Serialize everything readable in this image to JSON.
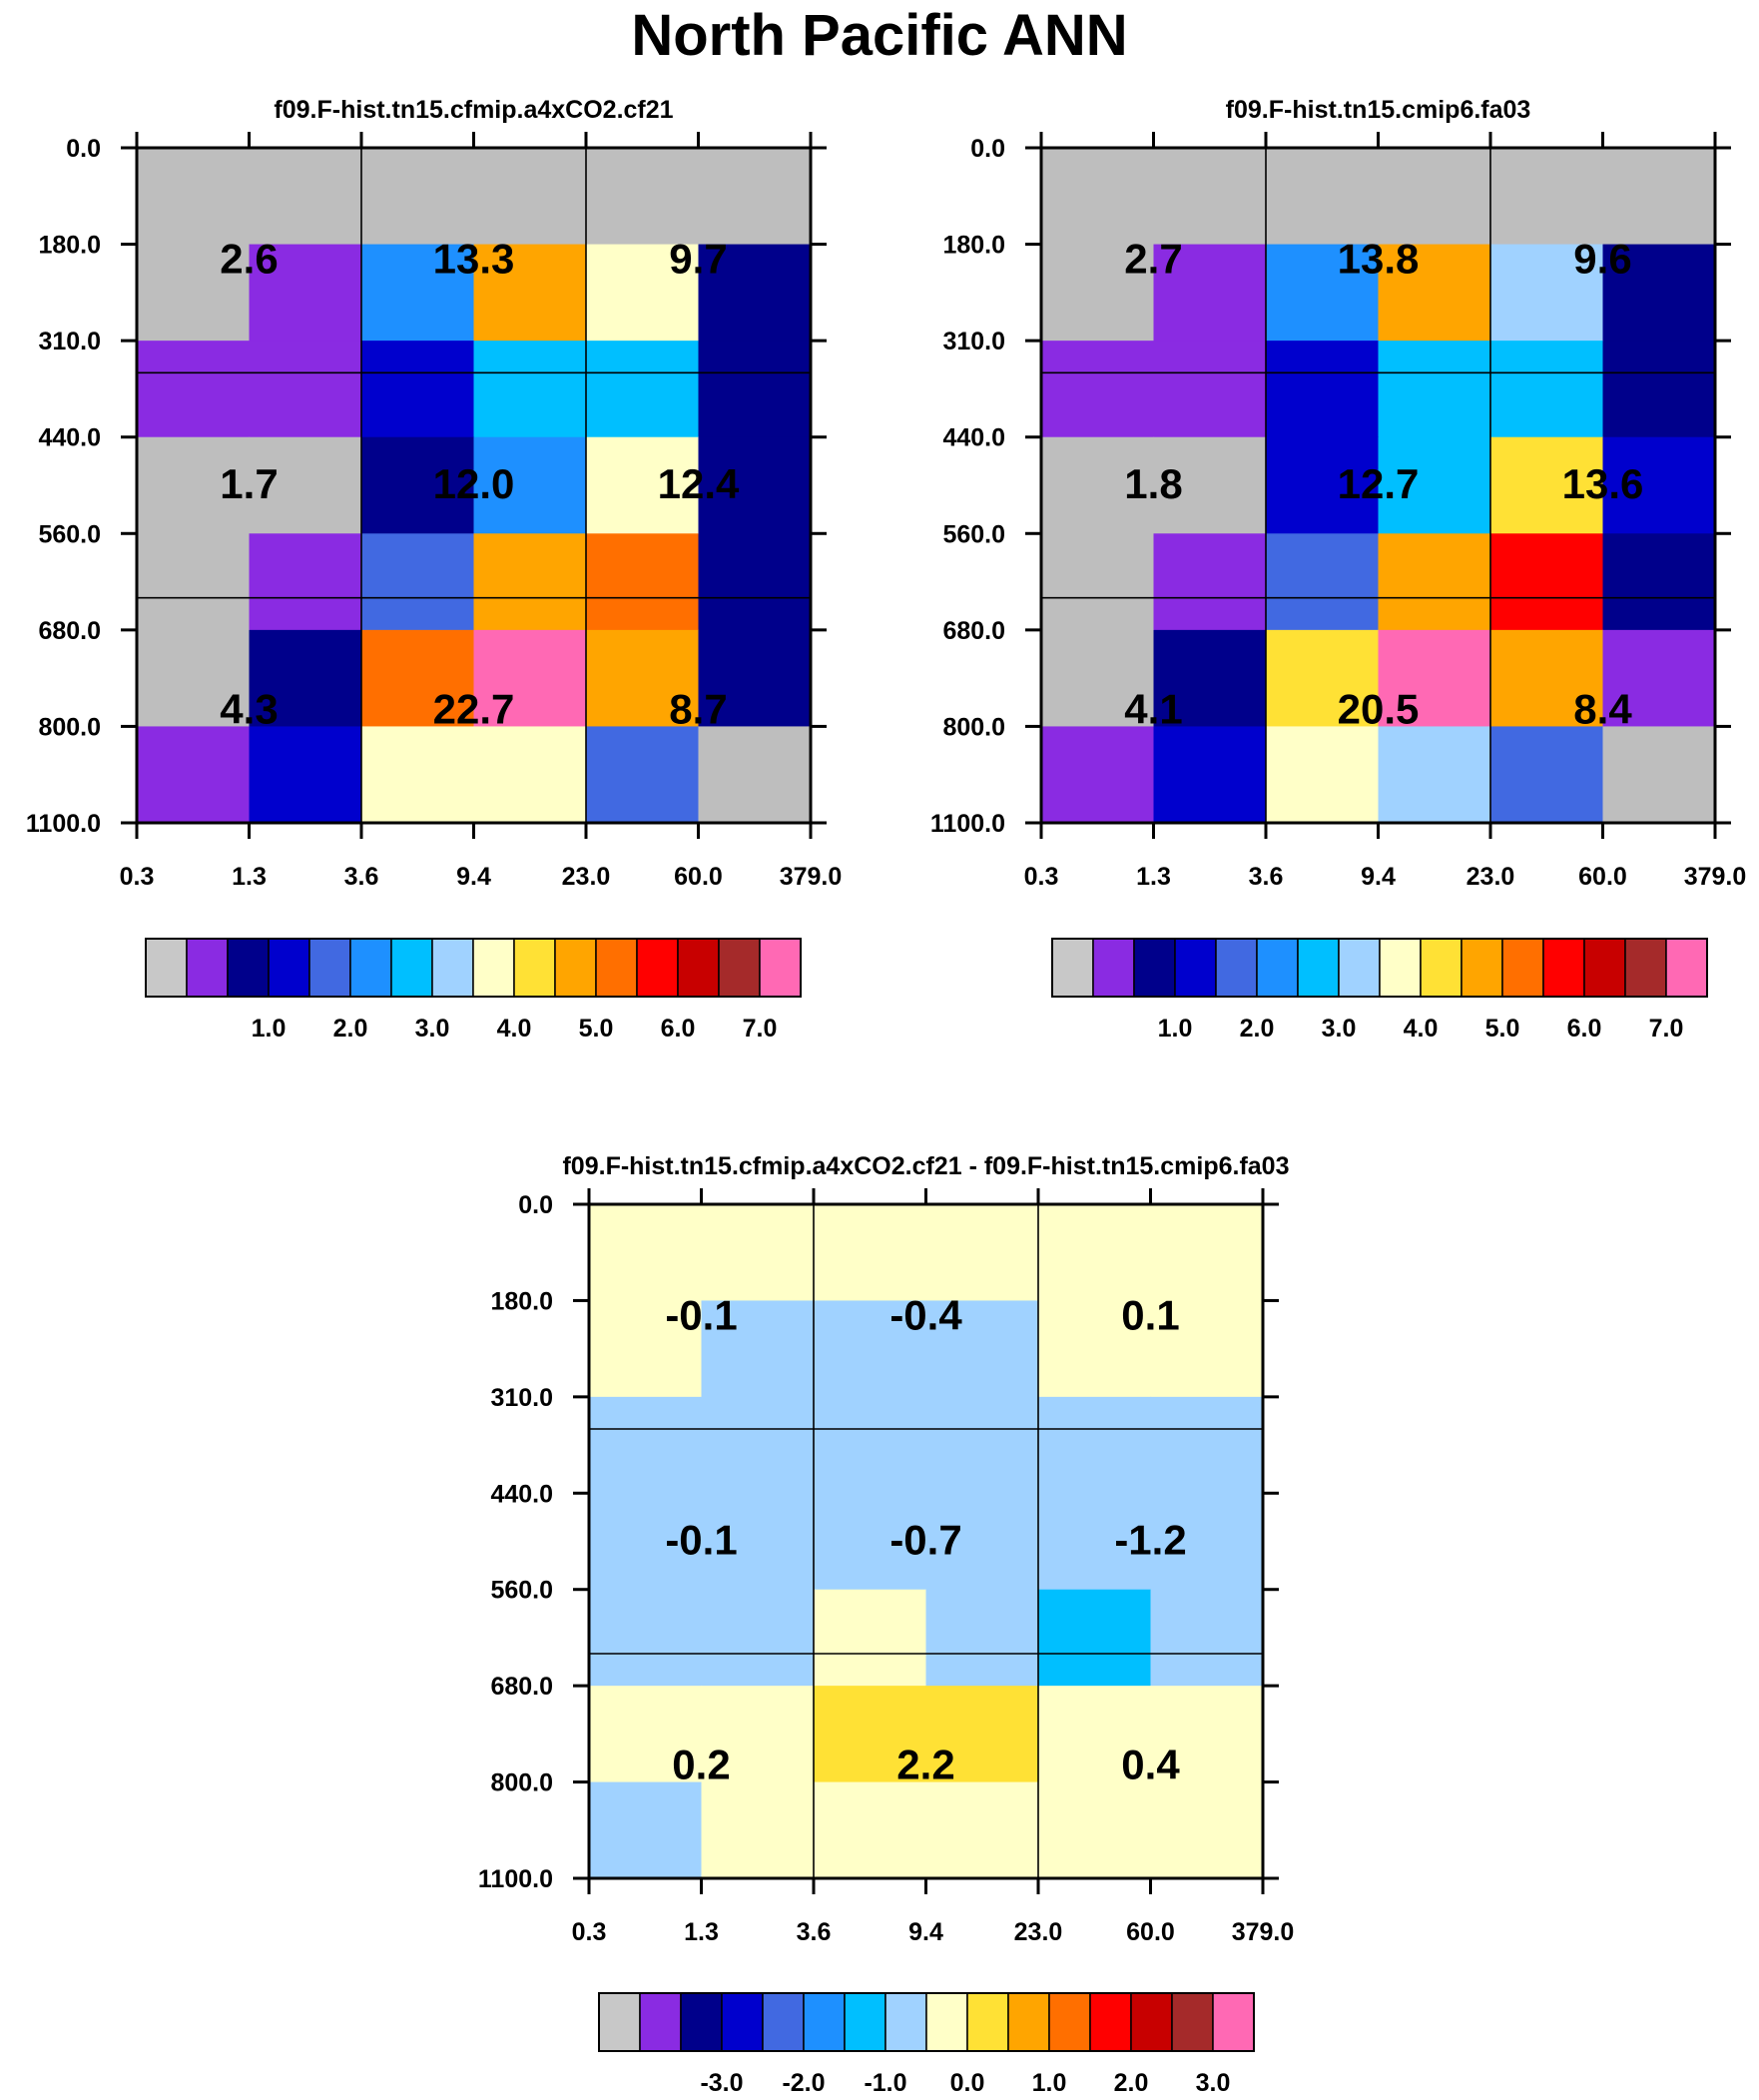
{
  "title": "North Pacific ANN",
  "chart_data": [
    {
      "type": "heatmap",
      "title": "f09.F-hist.tn15.cfmip.a4xCO2.cf21",
      "x_ticks": [
        "0.3",
        "1.3",
        "3.6",
        "9.4",
        "23.0",
        "60.0",
        "379.0"
      ],
      "y_ticks": [
        "0.0",
        "180.0",
        "310.0",
        "440.0",
        "560.0",
        "680.0",
        "800.0",
        "1100.0"
      ],
      "grid_rows": [
        [
          "#BEBEBE",
          "#BEBEBE",
          "#BEBEBE",
          "#BEBEBE",
          "#BEBEBE",
          "#BEBEBE"
        ],
        [
          "#BEBEBE",
          "#8A2BE2",
          "#1E90FF",
          "#FFA500",
          "#FFFFC8",
          "#00008B"
        ],
        [
          "#8A2BE2",
          "#8A2BE2",
          "#0000CD",
          "#00BFFF",
          "#00BFFF",
          "#00008B"
        ],
        [
          "#BEBEBE",
          "#BEBEBE",
          "#00008B",
          "#1E90FF",
          "#FFFFC8",
          "#00008B"
        ],
        [
          "#BEBEBE",
          "#8A2BE2",
          "#4169E1",
          "#FFA500",
          "#FF6F00",
          "#00008B"
        ],
        [
          "#BEBEBE",
          "#00008B",
          "#FF6F00",
          "#FF69B4",
          "#FFA500",
          "#00008B"
        ],
        [
          "#8A2BE2",
          "#0000CD",
          "#FFFFC8",
          "#FFFFC8",
          "#4169E1",
          "#BEBEBE"
        ]
      ],
      "cell_labels": [
        [
          "2.6",
          "13.3",
          "9.7"
        ],
        [
          "1.7",
          "12.0",
          "12.4"
        ],
        [
          "4.3",
          "22.7",
          "8.7"
        ]
      ],
      "colorbar": {
        "colors": [
          "#C8C8C8",
          "#8A2BE2",
          "#00008B",
          "#0000CD",
          "#4169E1",
          "#1E90FF",
          "#00BFFF",
          "#A0D2FF",
          "#FFFFC8",
          "#FFE135",
          "#FFA500",
          "#FF6F00",
          "#FF0000",
          "#C80000",
          "#A52A2A",
          "#FF69B4"
        ],
        "labels": [
          "1.0",
          "2.0",
          "3.0",
          "4.0",
          "5.0",
          "6.0",
          "7.0"
        ]
      }
    },
    {
      "type": "heatmap",
      "title": "f09.F-hist.tn15.cmip6.fa03",
      "x_ticks": [
        "0.3",
        "1.3",
        "3.6",
        "9.4",
        "23.0",
        "60.0",
        "379.0"
      ],
      "y_ticks": [
        "0.0",
        "180.0",
        "310.0",
        "440.0",
        "560.0",
        "680.0",
        "800.0",
        "1100.0"
      ],
      "grid_rows": [
        [
          "#BEBEBE",
          "#BEBEBE",
          "#BEBEBE",
          "#BEBEBE",
          "#BEBEBE",
          "#BEBEBE"
        ],
        [
          "#BEBEBE",
          "#8A2BE2",
          "#1E90FF",
          "#FFA500",
          "#A0D2FF",
          "#00008B"
        ],
        [
          "#8A2BE2",
          "#8A2BE2",
          "#0000CD",
          "#00BFFF",
          "#00BFFF",
          "#00008B"
        ],
        [
          "#BEBEBE",
          "#BEBEBE",
          "#0000CD",
          "#00BFFF",
          "#FFE135",
          "#0000CD"
        ],
        [
          "#BEBEBE",
          "#8A2BE2",
          "#4169E1",
          "#FFA500",
          "#FF0000",
          "#00008B"
        ],
        [
          "#BEBEBE",
          "#00008B",
          "#FFE135",
          "#FF69B4",
          "#FFA500",
          "#8A2BE2"
        ],
        [
          "#8A2BE2",
          "#0000CD",
          "#FFFFC8",
          "#A0D2FF",
          "#4169E1",
          "#BEBEBE"
        ]
      ],
      "cell_labels": [
        [
          "2.7",
          "13.8",
          "9.6"
        ],
        [
          "1.8",
          "12.7",
          "13.6"
        ],
        [
          "4.1",
          "20.5",
          "8.4"
        ]
      ],
      "colorbar": {
        "colors": [
          "#C8C8C8",
          "#8A2BE2",
          "#00008B",
          "#0000CD",
          "#4169E1",
          "#1E90FF",
          "#00BFFF",
          "#A0D2FF",
          "#FFFFC8",
          "#FFE135",
          "#FFA500",
          "#FF6F00",
          "#FF0000",
          "#C80000",
          "#A52A2A",
          "#FF69B4"
        ],
        "labels": [
          "1.0",
          "2.0",
          "3.0",
          "4.0",
          "5.0",
          "6.0",
          "7.0"
        ]
      }
    },
    {
      "type": "heatmap",
      "title": "f09.F-hist.tn15.cfmip.a4xCO2.cf21 - f09.F-hist.tn15.cmip6.fa03",
      "x_ticks": [
        "0.3",
        "1.3",
        "3.6",
        "9.4",
        "23.0",
        "60.0",
        "379.0"
      ],
      "y_ticks": [
        "0.0",
        "180.0",
        "310.0",
        "440.0",
        "560.0",
        "680.0",
        "800.0",
        "1100.0"
      ],
      "grid_rows": [
        [
          "#FFFFC8",
          "#FFFFC8",
          "#FFFFC8",
          "#FFFFC8",
          "#FFFFC8",
          "#FFFFC8"
        ],
        [
          "#FFFFC8",
          "#A0D2FF",
          "#A0D2FF",
          "#A0D2FF",
          "#FFFFC8",
          "#FFFFC8"
        ],
        [
          "#A0D2FF",
          "#A0D2FF",
          "#A0D2FF",
          "#A0D2FF",
          "#A0D2FF",
          "#A0D2FF"
        ],
        [
          "#A0D2FF",
          "#A0D2FF",
          "#A0D2FF",
          "#A0D2FF",
          "#A0D2FF",
          "#A0D2FF"
        ],
        [
          "#A0D2FF",
          "#A0D2FF",
          "#FFFFC8",
          "#A0D2FF",
          "#00BFFF",
          "#A0D2FF"
        ],
        [
          "#FFFFC8",
          "#FFFFC8",
          "#FFE135",
          "#FFE135",
          "#FFFFC8",
          "#FFFFC8"
        ],
        [
          "#A0D2FF",
          "#FFFFC8",
          "#FFFFC8",
          "#FFFFC8",
          "#FFFFC8",
          "#FFFFC8"
        ]
      ],
      "cell_labels": [
        [
          "-0.1",
          "-0.4",
          "0.1"
        ],
        [
          "-0.1",
          "-0.7",
          "-1.2"
        ],
        [
          "0.2",
          "2.2",
          "0.4"
        ]
      ],
      "colorbar": {
        "colors": [
          "#C8C8C8",
          "#8A2BE2",
          "#00008B",
          "#0000CD",
          "#4169E1",
          "#1E90FF",
          "#00BFFF",
          "#A0D2FF",
          "#FFFFC8",
          "#FFE135",
          "#FFA500",
          "#FF6F00",
          "#FF0000",
          "#C80000",
          "#A52A2A",
          "#FF69B4"
        ],
        "labels": [
          "-3.0",
          "-2.0",
          "-1.0",
          "0.0",
          "1.0",
          "2.0",
          "3.0"
        ]
      }
    }
  ]
}
